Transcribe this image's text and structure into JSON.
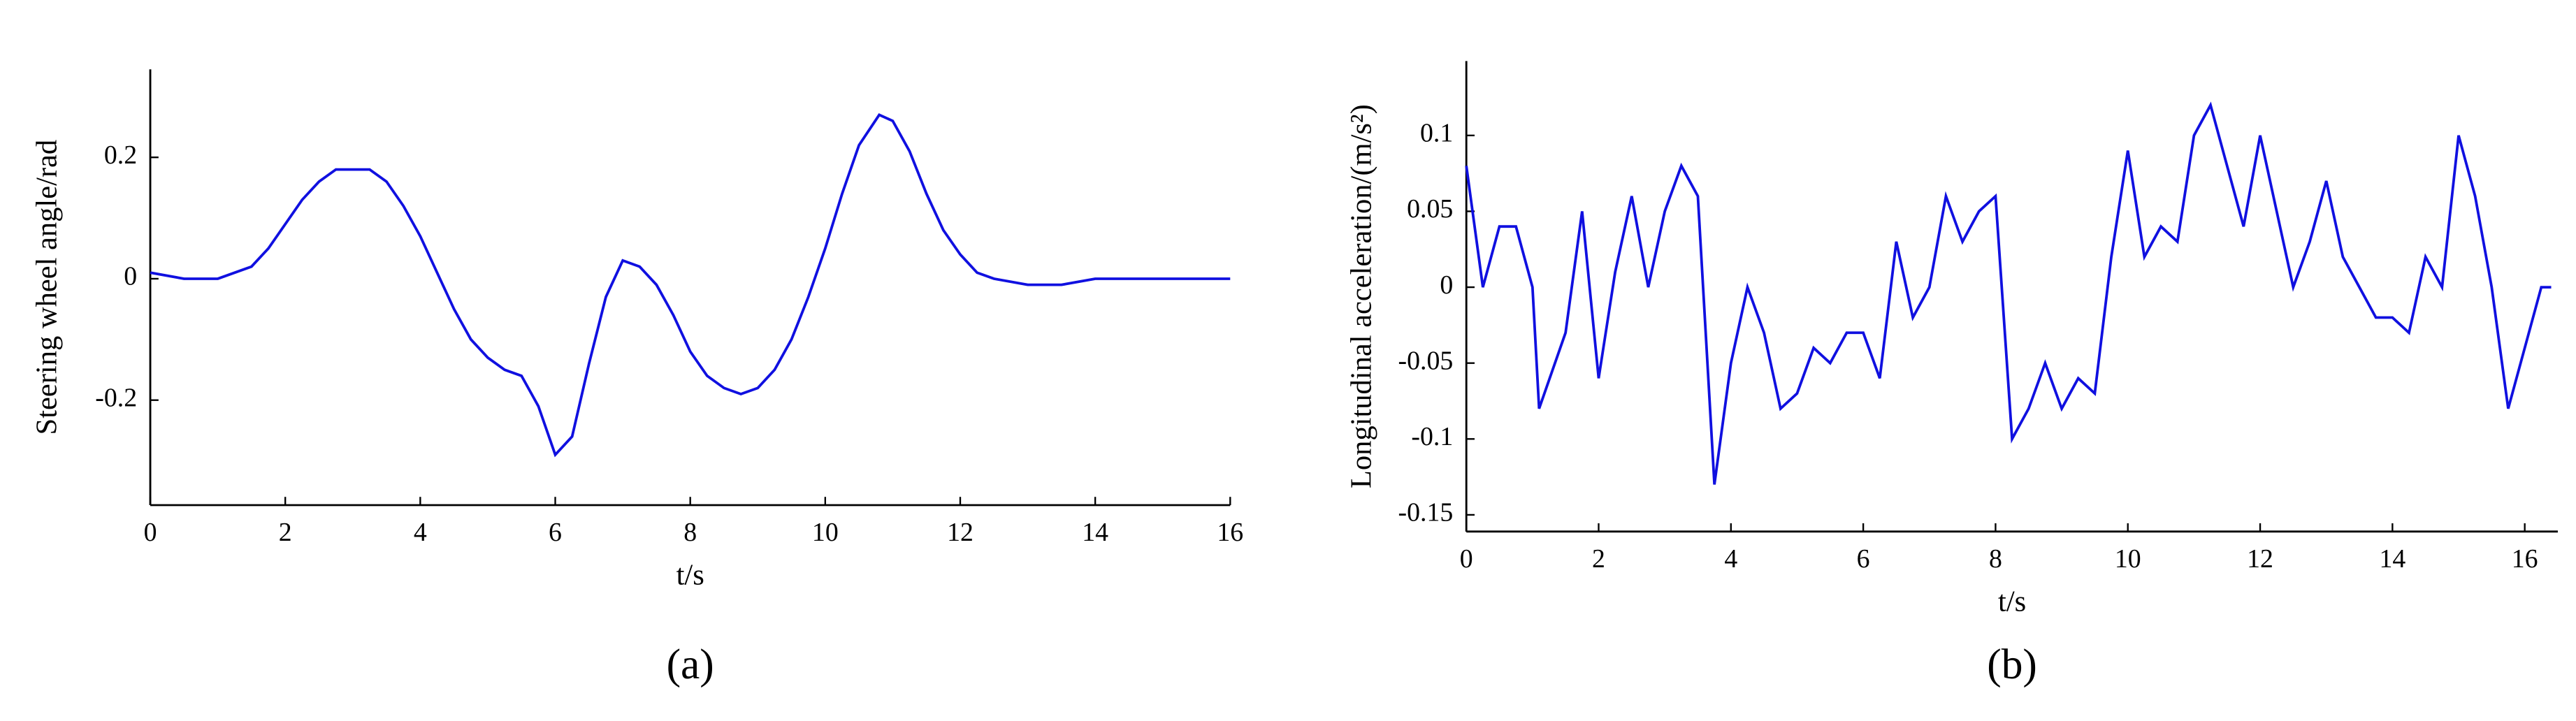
{
  "chart_data": [
    {
      "type": "line",
      "label": "(a)",
      "ylabel": "Steering wheel angle/rad",
      "xlabel": "t/s",
      "color": "#1010e0",
      "x": [
        0,
        0.5,
        1,
        1.5,
        1.75,
        2,
        2.25,
        2.5,
        2.75,
        3,
        3.25,
        3.5,
        3.75,
        4,
        4.25,
        4.5,
        4.75,
        5,
        5.25,
        5.5,
        5.75,
        6,
        6.25,
        6.5,
        6.75,
        7,
        7.25,
        7.5,
        7.75,
        8,
        8.25,
        8.5,
        8.75,
        9,
        9.25,
        9.5,
        9.75,
        10,
        10.25,
        10.5,
        10.8,
        11,
        11.25,
        11.5,
        11.75,
        12,
        12.25,
        12.5,
        13,
        13.5,
        14,
        14.5,
        15,
        15.5,
        16
      ],
      "values": [
        0.01,
        0.0,
        0.0,
        0.02,
        0.05,
        0.09,
        0.13,
        0.16,
        0.18,
        0.18,
        0.18,
        0.16,
        0.12,
        0.07,
        0.01,
        -0.05,
        -0.1,
        -0.13,
        -0.15,
        -0.16,
        -0.21,
        -0.29,
        -0.26,
        -0.14,
        -0.03,
        0.03,
        0.02,
        -0.01,
        -0.06,
        -0.12,
        -0.16,
        -0.18,
        -0.19,
        -0.18,
        -0.15,
        -0.1,
        -0.03,
        0.05,
        0.14,
        0.22,
        0.27,
        0.26,
        0.21,
        0.14,
        0.08,
        0.04,
        0.01,
        0.0,
        -0.01,
        -0.01,
        0.0,
        0.0,
        0.0,
        0.0,
        0.0
      ],
      "xlim": [
        0,
        16
      ],
      "ylim": [
        -0.373,
        0.345
      ],
      "xticks": [
        0,
        2,
        4,
        6,
        8,
        10,
        12,
        14,
        16
      ],
      "yticks": [
        -0.2,
        0,
        0.2
      ]
    },
    {
      "type": "line",
      "label": "(b)",
      "ylabel": "Longitudinal acceleration/(m/s²)",
      "xlabel": "t/s",
      "color": "#1010e0",
      "x": [
        0,
        0.25,
        0.5,
        0.75,
        1,
        1.1,
        1.5,
        1.75,
        2,
        2.25,
        2.5,
        2.75,
        3,
        3.25,
        3.5,
        3.75,
        4,
        4.25,
        4.5,
        4.75,
        5,
        5.25,
        5.5,
        5.75,
        6,
        6.25,
        6.5,
        6.75,
        7,
        7.25,
        7.5,
        7.75,
        8,
        8.25,
        8.5,
        8.75,
        9,
        9.25,
        9.5,
        9.75,
        10,
        10.25,
        10.5,
        10.75,
        11,
        11.25,
        11.5,
        11.75,
        12,
        12.25,
        12.5,
        12.75,
        13,
        13.25,
        13.5,
        13.75,
        14,
        14.25,
        14.5,
        14.75,
        15,
        15.25,
        15.5,
        15.75,
        16,
        16.25,
        16.4
      ],
      "values": [
        0.08,
        0.0,
        0.04,
        0.04,
        0.0,
        -0.08,
        -0.03,
        0.05,
        -0.06,
        0.01,
        0.06,
        0.0,
        0.05,
        0.08,
        0.06,
        -0.13,
        -0.05,
        0.0,
        -0.03,
        -0.08,
        -0.07,
        -0.04,
        -0.05,
        -0.03,
        -0.03,
        -0.06,
        0.03,
        -0.02,
        0.0,
        0.06,
        0.03,
        0.05,
        0.06,
        -0.1,
        -0.08,
        -0.05,
        -0.08,
        -0.06,
        -0.07,
        0.02,
        0.09,
        0.02,
        0.04,
        0.03,
        0.1,
        0.12,
        0.08,
        0.04,
        0.1,
        0.05,
        0.0,
        0.03,
        0.07,
        0.02,
        0.0,
        -0.02,
        -0.02,
        -0.03,
        0.02,
        0.0,
        0.1,
        0.06,
        0.0,
        -0.08,
        -0.04,
        0.0,
        0.0
      ],
      "xlim": [
        0,
        16.5
      ],
      "ylim": [
        -0.161,
        0.149
      ],
      "xticks": [
        0,
        2,
        4,
        6,
        8,
        10,
        12,
        14,
        16
      ],
      "yticks": [
        -0.15,
        -0.1,
        -0.05,
        0,
        0.05,
        0.1
      ]
    }
  ]
}
